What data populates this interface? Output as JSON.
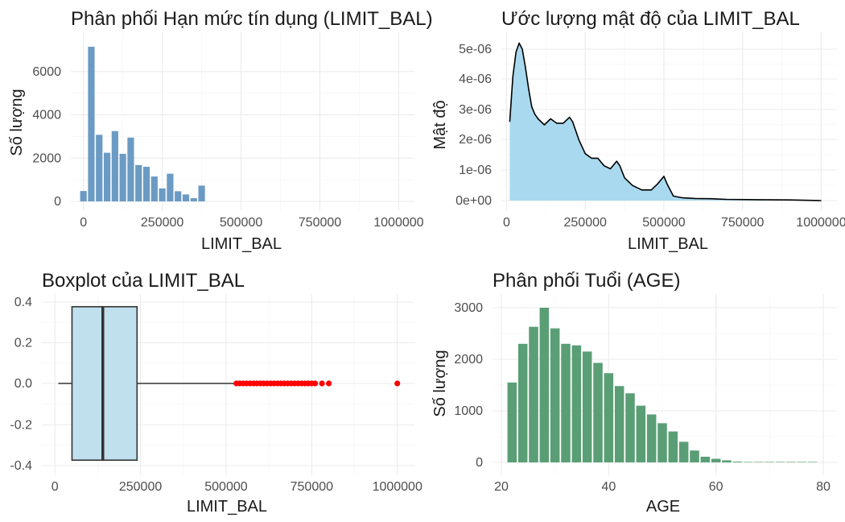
{
  "chart_data": [
    {
      "type": "bar",
      "title": "Phân phối Hạn mức tín dụng (LIMIT_BAL)",
      "xlabel": "LIMIT_BAL",
      "ylabel": "Số lượng",
      "color": "#6b9bc4",
      "bin_width": 25000,
      "xlim": [
        -25000,
        1000000
      ],
      "ylim": [
        0,
        7200
      ],
      "xticks": [
        0,
        250000,
        500000,
        750000,
        1000000
      ],
      "yticks": [
        0,
        2000,
        4000,
        6000
      ],
      "x": [
        0,
        25000,
        50000,
        75000,
        100000,
        125000,
        150000,
        175000,
        200000,
        225000,
        250000,
        275000,
        300000,
        325000,
        350000,
        375000,
        400000,
        425000,
        450000,
        475000,
        500000
      ],
      "values": [
        480,
        7150,
        3080,
        2250,
        3250,
        2200,
        2950,
        1680,
        1600,
        1150,
        600,
        1280,
        470,
        320,
        150,
        730,
        0,
        0,
        0,
        0,
        0
      ]
    },
    {
      "type": "area",
      "title": "Ước lượng mật độ của LIMIT_BAL",
      "xlabel": "LIMIT_BAL",
      "ylabel": "Mật độ",
      "color": "#a9d9ef",
      "xlim": [
        10000,
        1000000
      ],
      "ylim": [
        0,
        5.1e-06
      ],
      "xticks": [
        0,
        250000,
        500000,
        750000,
        1000000
      ],
      "yticks": [
        0,
        1e-06,
        2e-06,
        3e-06,
        4e-06,
        5e-06
      ],
      "ytick_labels": [
        "0e+00",
        "1e-06",
        "2e-06",
        "3e-06",
        "4e-06",
        "5e-06"
      ],
      "x": [
        10000,
        20000,
        30000,
        40000,
        50000,
        60000,
        70000,
        80000,
        90000,
        100000,
        120000,
        140000,
        160000,
        180000,
        200000,
        210000,
        230000,
        250000,
        270000,
        290000,
        310000,
        330000,
        350000,
        360000,
        375000,
        400000,
        430000,
        460000,
        480000,
        500000,
        510000,
        530000,
        560000,
        600000,
        650000,
        700000,
        800000,
        900000,
        1000000
      ],
      "y": [
        2.6e-06,
        4.1e-06,
        4.9e-06,
        5.2e-06,
        5e-06,
        4.4e-06,
        3.7e-06,
        3.1e-06,
        2.85e-06,
        2.7e-06,
        2.5e-06,
        2.7e-06,
        2.55e-06,
        2.55e-06,
        2.75e-06,
        2.6e-06,
        2e-06,
        1.55e-06,
        1.4e-06,
        1.4e-06,
        1.15e-06,
        1.05e-06,
        1.3e-06,
        1.15e-06,
        7.5e-07,
        5e-07,
        3.5e-07,
        3.5e-07,
        5.5e-07,
        8e-07,
        5.5e-07,
        1.5e-07,
        9e-08,
        7e-08,
        6e-08,
        4e-08,
        3e-08,
        2e-08,
        0.0
      ]
    },
    {
      "type": "boxplot",
      "title": "Boxplot của LIMIT_BAL",
      "xlabel": "LIMIT_BAL",
      "ylabel": "",
      "color": "#bfe0ec",
      "outlier_color": "#ff0000",
      "xlim": [
        0,
        1000000
      ],
      "ylim": [
        -0.4,
        0.4
      ],
      "xticks": [
        0,
        250000,
        500000,
        750000,
        1000000
      ],
      "yticks": [
        -0.4,
        -0.2,
        0.0,
        0.2,
        0.4
      ],
      "ytick_labels": [
        "-0.4",
        "-0.2",
        "0.0",
        "0.2",
        "0.4"
      ],
      "whisker_low": 10000,
      "q1": 50000,
      "median": 140000,
      "q3": 240000,
      "whisker_high": 525000,
      "outliers": [
        530000,
        540000,
        550000,
        560000,
        570000,
        580000,
        590000,
        600000,
        610000,
        620000,
        630000,
        640000,
        650000,
        660000,
        670000,
        680000,
        690000,
        700000,
        710000,
        720000,
        730000,
        740000,
        750000,
        760000,
        780000,
        800000,
        1000000
      ]
    },
    {
      "type": "bar",
      "title": "Phân phối Tuổi (AGE)",
      "xlabel": "AGE",
      "ylabel": "Số lượng",
      "color": "#5a9e76",
      "bin_width": 2,
      "xlim": [
        20,
        80
      ],
      "ylim": [
        0,
        3000
      ],
      "xticks": [
        20,
        40,
        60,
        80
      ],
      "yticks": [
        0,
        1000,
        2000,
        3000
      ],
      "x": [
        22,
        24,
        26,
        28,
        30,
        32,
        34,
        36,
        38,
        40,
        42,
        44,
        46,
        48,
        50,
        52,
        54,
        56,
        58,
        60,
        62,
        64,
        66,
        68,
        70,
        72,
        74,
        76,
        78
      ],
      "values": [
        1550,
        2300,
        2630,
        3000,
        2600,
        2300,
        2270,
        2150,
        1930,
        1730,
        1480,
        1340,
        1100,
        930,
        760,
        600,
        400,
        230,
        110,
        70,
        40,
        15,
        8,
        5,
        3,
        2,
        1,
        1,
        1
      ]
    }
  ]
}
